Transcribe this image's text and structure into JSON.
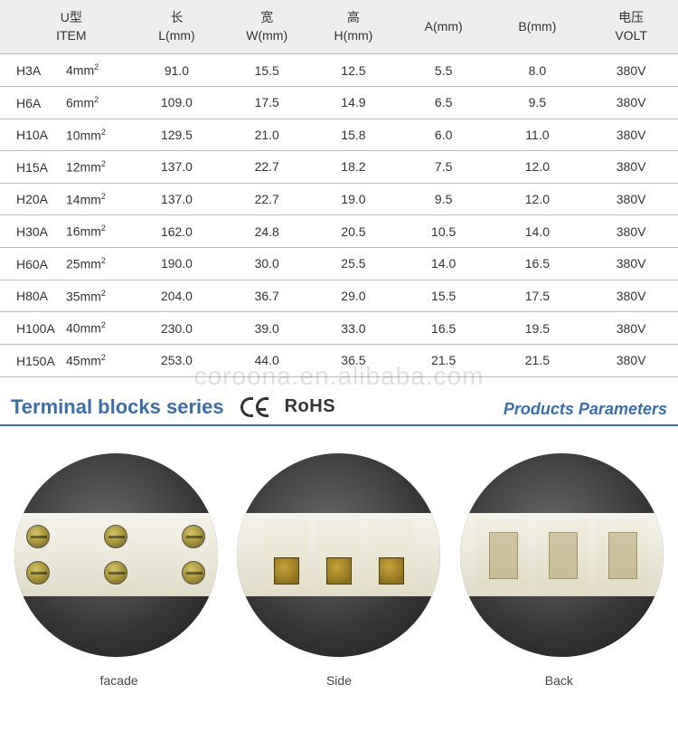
{
  "table": {
    "headers": {
      "item": {
        "top": "U型",
        "bottom": "ITEM"
      },
      "l": {
        "top": "长",
        "bottom": "L(mm)"
      },
      "w": {
        "top": "宽",
        "bottom": "W(mm)"
      },
      "h": {
        "top": "高",
        "bottom": "H(mm)"
      },
      "a": {
        "bottom": "A(mm)"
      },
      "b": {
        "bottom": "B(mm)"
      },
      "v": {
        "top": "电压",
        "bottom": "VOLT"
      }
    },
    "rows": [
      {
        "model": "H3A",
        "size": "4mm²",
        "l": "91.0",
        "w": "15.5",
        "h": "12.5",
        "a": "5.5",
        "b": "8.0",
        "v": "380V"
      },
      {
        "model": "H6A",
        "size": "6mm²",
        "l": "109.0",
        "w": "17.5",
        "h": "14.9",
        "a": "6.5",
        "b": "9.5",
        "v": "380V"
      },
      {
        "model": "H10A",
        "size": "10mm²",
        "l": "129.5",
        "w": "21.0",
        "h": "15.8",
        "a": "6.0",
        "b": "11.0",
        "v": "380V"
      },
      {
        "model": "H15A",
        "size": "12mm²",
        "l": "137.0",
        "w": "22.7",
        "h": "18.2",
        "a": "7.5",
        "b": "12.0",
        "v": "380V"
      },
      {
        "model": "H20A",
        "size": "14mm²",
        "l": "137.0",
        "w": "22.7",
        "h": "19.0",
        "a": "9.5",
        "b": "12.0",
        "v": "380V"
      },
      {
        "model": "H30A",
        "size": "16mm²",
        "l": "162.0",
        "w": "24.8",
        "h": "20.5",
        "a": "10.5",
        "b": "14.0",
        "v": "380V"
      },
      {
        "model": "H60A",
        "size": "25mm²",
        "l": "190.0",
        "w": "30.0",
        "h": "25.5",
        "a": "14.0",
        "b": "16.5",
        "v": "380V"
      },
      {
        "model": "H80A",
        "size": "35mm²",
        "l": "204.0",
        "w": "36.7",
        "h": "29.0",
        "a": "15.5",
        "b": "17.5",
        "v": "380V"
      },
      {
        "model": "H100A",
        "size": "40mm²",
        "l": "230.0",
        "w": "39.0",
        "h": "33.0",
        "a": "16.5",
        "b": "19.5",
        "v": "380V"
      },
      {
        "model": "H150A",
        "size": "45mm²",
        "l": "253.0",
        "w": "44.0",
        "h": "36.5",
        "a": "21.5",
        "b": "21.5",
        "v": "380V"
      }
    ]
  },
  "watermark": "coroona.en.alibaba.com",
  "section": {
    "title": "Terminal blocks series",
    "cert_rohs": "RoHS",
    "subtitle": "Products Parameters"
  },
  "images": [
    {
      "caption": "facade",
      "name": "product-facade"
    },
    {
      "caption": "Side",
      "name": "product-side"
    },
    {
      "caption": "Back",
      "name": "product-back"
    }
  ],
  "style": {
    "header_bg": "#eeeeee",
    "border_color": "#bbbbbb",
    "accent_color": "#3a6ea8",
    "text_color": "#333333",
    "table_fontsize": 14,
    "section_title_fontsize": 22,
    "subtitle_fontsize": 18
  }
}
